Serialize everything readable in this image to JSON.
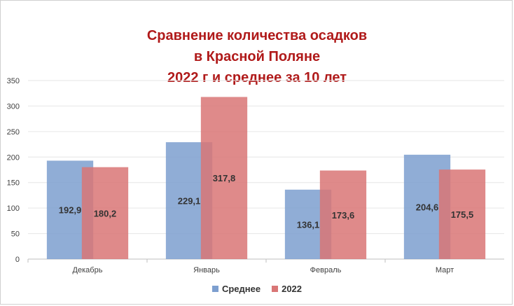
{
  "chart_data": {
    "type": "bar",
    "title_lines": [
      "Сравнение количества осадков",
      "в Красной Поляне",
      "2022 г и среднее за 10 лет"
    ],
    "categories": [
      "Декабрь",
      "Январь",
      "Февраль",
      "Март"
    ],
    "series": [
      {
        "name": "Среднее",
        "values": [
          192.9,
          229.1,
          136.1,
          204.6
        ],
        "labels": [
          "192,9",
          "229,1",
          "136,1",
          "204,6"
        ],
        "color": "#7d9fcf"
      },
      {
        "name": "2022",
        "values": [
          180.2,
          317.8,
          173.6,
          175.5
        ],
        "labels": [
          "180,2",
          "317,8",
          "173,6",
          "175,5"
        ],
        "color": "#d97676"
      }
    ],
    "ylim": [
      0,
      350
    ],
    "yticks": [
      0,
      50,
      100,
      150,
      200,
      250,
      300,
      350
    ],
    "grid": true,
    "legend_position": "bottom",
    "bar_style": "overlapping"
  }
}
